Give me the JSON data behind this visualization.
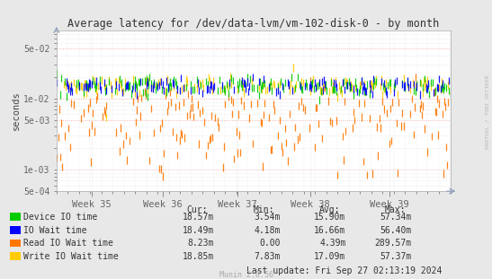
{
  "title": "Average latency for /dev/data-lvm/vm-102-disk-0 - by month",
  "ylabel": "seconds",
  "watermark": "RRDTOOL / TOBI OETIKER",
  "munin_version": "Munin 2.0.56",
  "last_update": "Last update: Fri Sep 27 02:13:19 2024",
  "x_tick_labels": [
    "Week 35",
    "Week 36",
    "Week 37",
    "Week 38",
    "Week 39"
  ],
  "ymin": 0.0005,
  "ymax": 0.05,
  "yticks": [
    0.0005,
    0.001,
    0.005,
    0.01,
    0.05
  ],
  "ytick_labels": [
    "5e-04",
    "1e-03",
    "5e-03",
    "1e-02",
    "5e-02"
  ],
  "background_color": "#e8e8e8",
  "plot_bg_color": "#ffffff",
  "grid_minor_color": "#d8d8d8",
  "grid_major_color": "#f0a0a0",
  "title_color": "#333333",
  "legend_labels": [
    "Device IO time",
    "IO Wait time",
    "Read IO Wait time",
    "Write IO Wait time"
  ],
  "legend_colors": [
    "#00cc00",
    "#0000ff",
    "#ff7700",
    "#ffcc00"
  ],
  "stats_headers": [
    "Cur:",
    "Min:",
    "Avg:",
    "Max:"
  ],
  "stats": [
    [
      "18.57m",
      "3.54m",
      "15.90m",
      "57.34m"
    ],
    [
      "18.49m",
      "4.18m",
      "16.66m",
      "56.40m"
    ],
    [
      "8.23m",
      "0.00",
      "4.39m",
      "289.57m"
    ],
    [
      "18.85m",
      "7.83m",
      "17.09m",
      "57.37m"
    ]
  ],
  "n_points": 400,
  "green_base": 0.016,
  "blue_base": 0.016,
  "orange_base": 0.005,
  "yellow_base": 0.016
}
